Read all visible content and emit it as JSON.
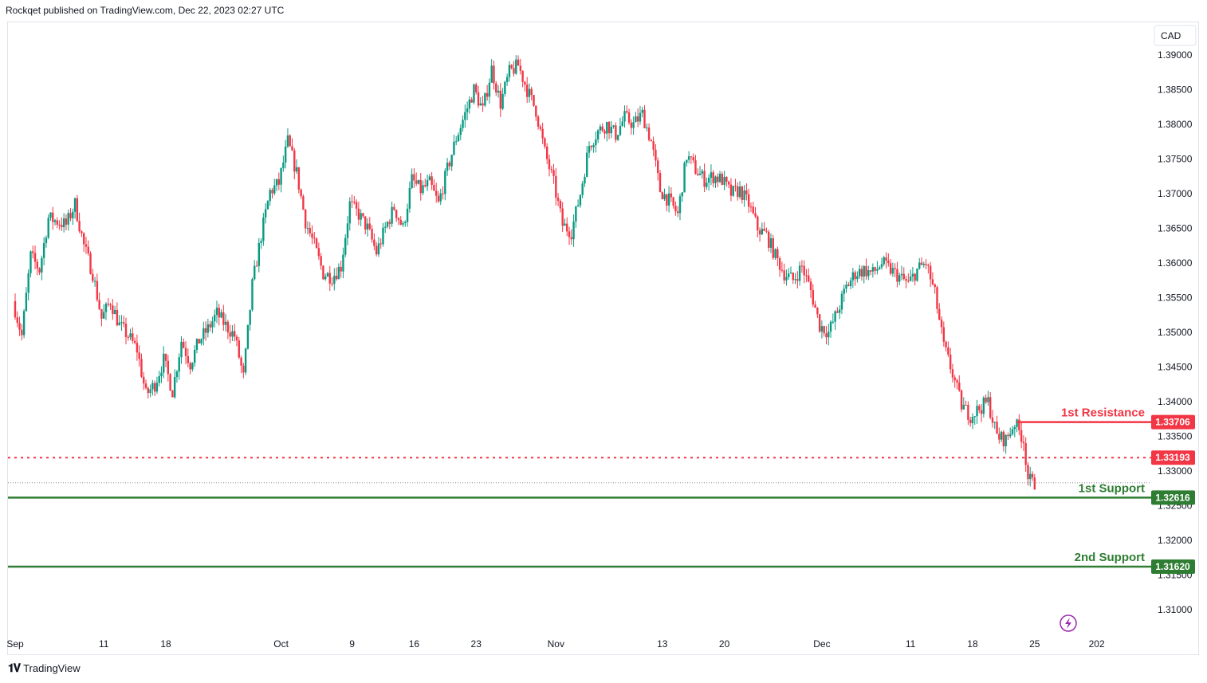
{
  "header": {
    "text": "Rockqet published on TradingView.com, Dec 22, 2023 02:27 UTC"
  },
  "footer": {
    "brand": "TradingView",
    "logo": "tradingview-logo-icon"
  },
  "chart_data": {
    "type": "candlestick",
    "currency_label": "CAD",
    "y_ticks": [
      "1.39000",
      "1.38500",
      "1.38000",
      "1.37500",
      "1.37000",
      "1.36500",
      "1.36000",
      "1.35500",
      "1.35000",
      "1.34500",
      "1.34000",
      "1.33500",
      "1.33000",
      "1.32500",
      "1.32000",
      "1.31500",
      "1.31000"
    ],
    "ylim": [
      1.3055,
      1.3935
    ],
    "x_ticks": [
      {
        "label": "Sep",
        "day": 0
      },
      {
        "label": "11",
        "day": 10
      },
      {
        "label": "18",
        "day": 17
      },
      {
        "label": "Oct",
        "day": 30
      },
      {
        "label": "9",
        "day": 38
      },
      {
        "label": "16",
        "day": 45
      },
      {
        "label": "23",
        "day": 52
      },
      {
        "label": "Nov",
        "day": 61
      },
      {
        "label": "13",
        "day": 73
      },
      {
        "label": "20",
        "day": 80
      },
      {
        "label": "Dec",
        "day": 91
      },
      {
        "label": "11",
        "day": 101
      },
      {
        "label": "18",
        "day": 108
      },
      {
        "label": "25",
        "day": 115
      },
      {
        "label": "202",
        "day": 122
      }
    ],
    "price_path": [
      [
        0,
        1.3545
      ],
      [
        1,
        1.3495
      ],
      [
        2,
        1.361
      ],
      [
        3,
        1.359
      ],
      [
        4,
        1.3665
      ],
      [
        6,
        1.3655
      ],
      [
        7,
        1.3685
      ],
      [
        8,
        1.3625
      ],
      [
        9,
        1.3585
      ],
      [
        10,
        1.352
      ],
      [
        11,
        1.3545
      ],
      [
        12,
        1.351
      ],
      [
        13,
        1.3495
      ],
      [
        14,
        1.3475
      ],
      [
        15,
        1.341
      ],
      [
        16,
        1.3425
      ],
      [
        17,
        1.346
      ],
      [
        18,
        1.3415
      ],
      [
        19,
        1.3488
      ],
      [
        20,
        1.3455
      ],
      [
        21,
        1.3488
      ],
      [
        22,
        1.3505
      ],
      [
        23,
        1.3527
      ],
      [
        24,
        1.351
      ],
      [
        25,
        1.3495
      ],
      [
        26,
        1.3435
      ],
      [
        27,
        1.3568
      ],
      [
        28,
        1.364
      ],
      [
        29,
        1.3703
      ],
      [
        30,
        1.3715
      ],
      [
        31,
        1.3775
      ],
      [
        32,
        1.373
      ],
      [
        33,
        1.366
      ],
      [
        34,
        1.3625
      ],
      [
        35,
        1.3585
      ],
      [
        36,
        1.358
      ],
      [
        37,
        1.3595
      ],
      [
        38,
        1.3685
      ],
      [
        39,
        1.367
      ],
      [
        40,
        1.365
      ],
      [
        41,
        1.3615
      ],
      [
        42,
        1.365
      ],
      [
        43,
        1.368
      ],
      [
        44,
        1.365
      ],
      [
        45,
        1.372
      ],
      [
        46,
        1.3705
      ],
      [
        47,
        1.3715
      ],
      [
        48,
        1.3685
      ],
      [
        49,
        1.3735
      ],
      [
        50,
        1.378
      ],
      [
        51,
        1.3815
      ],
      [
        52,
        1.385
      ],
      [
        53,
        1.382
      ],
      [
        54,
        1.388
      ],
      [
        55,
        1.383
      ],
      [
        56,
        1.3875
      ],
      [
        57,
        1.3885
      ],
      [
        58,
        1.385
      ],
      [
        59,
        1.382
      ],
      [
        60,
        1.376
      ],
      [
        61,
        1.3715
      ],
      [
        62,
        1.3655
      ],
      [
        63,
        1.3645
      ],
      [
        64,
        1.37
      ],
      [
        65,
        1.377
      ],
      [
        66,
        1.379
      ],
      [
        67,
        1.38
      ],
      [
        68,
        1.3785
      ],
      [
        69,
        1.381
      ],
      [
        70,
        1.38
      ],
      [
        71,
        1.3815
      ],
      [
        72,
        1.3775
      ],
      [
        73,
        1.3705
      ],
      [
        74,
        1.369
      ],
      [
        75,
        1.367
      ],
      [
        76,
        1.3755
      ],
      [
        77,
        1.3735
      ],
      [
        78,
        1.372
      ],
      [
        79,
        1.3725
      ],
      [
        80,
        1.372
      ],
      [
        81,
        1.37
      ],
      [
        82,
        1.3705
      ],
      [
        83,
        1.3685
      ],
      [
        84,
        1.365
      ],
      [
        85,
        1.364
      ],
      [
        86,
        1.361
      ],
      [
        87,
        1.3585
      ],
      [
        88,
        1.3575
      ],
      [
        89,
        1.3595
      ],
      [
        90,
        1.356
      ],
      [
        91,
        1.351
      ],
      [
        92,
        1.35
      ],
      [
        93,
        1.353
      ],
      [
        94,
        1.3565
      ],
      [
        95,
        1.3585
      ],
      [
        96,
        1.359
      ],
      [
        97,
        1.3585
      ],
      [
        98,
        1.36
      ],
      [
        99,
        1.359
      ],
      [
        100,
        1.358
      ],
      [
        101,
        1.357
      ],
      [
        102,
        1.359
      ],
      [
        103,
        1.36
      ],
      [
        104,
        1.3555
      ],
      [
        105,
        1.348
      ],
      [
        106,
        1.344
      ],
      [
        107,
        1.3395
      ],
      [
        108,
        1.338
      ],
      [
        109,
        1.339
      ],
      [
        110,
        1.34
      ],
      [
        111,
        1.335
      ],
      [
        112,
        1.3345
      ],
      [
        113,
        1.337
      ],
      [
        114,
        1.3345
      ],
      [
        114.5,
        1.329
      ],
      [
        115,
        1.3282
      ]
    ],
    "levels": [
      {
        "label": "1st Resistance",
        "value": 1.33706,
        "value_text": "1.33706",
        "color": "#f23645",
        "style": "solid",
        "start_day": 113
      },
      {
        "label": "",
        "value": 1.33193,
        "value_text": "1.33193",
        "color": "#f23645",
        "style": "dotted",
        "start_day": 0
      },
      {
        "label": "1st Support",
        "value": 1.32616,
        "value_text": "1.32616",
        "color": "#2e7d32",
        "style": "solid",
        "start_day": 0
      },
      {
        "label": "2nd Support",
        "value": 1.3162,
        "value_text": "1.31620",
        "color": "#2e7d32",
        "style": "solid",
        "start_day": 0
      }
    ],
    "last_price": 1.3283,
    "colors": {
      "up": "#089981",
      "down": "#f23645",
      "grid_text": "#131722"
    }
  }
}
